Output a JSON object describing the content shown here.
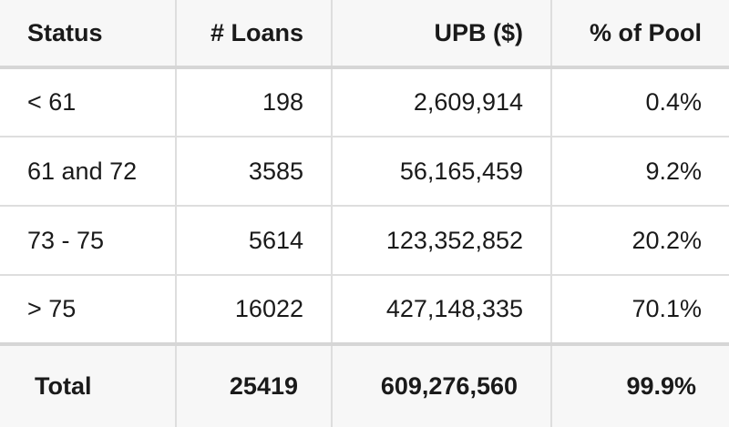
{
  "table": {
    "headers": [
      "Status",
      "# Loans",
      "UPB ($)",
      "% of Pool"
    ],
    "rows": [
      [
        "< 61",
        "198",
        "2,609,914",
        "0.4%"
      ],
      [
        "61 and 72",
        "3585",
        "56,165,459",
        "9.2%"
      ],
      [
        "73 - 75",
        "5614",
        "123,352,852",
        "20.2%"
      ],
      [
        "> 75",
        "16022",
        "427,148,335",
        "70.1%"
      ]
    ],
    "total": [
      "Total",
      "25419",
      "609,276,560",
      "99.9%"
    ]
  }
}
